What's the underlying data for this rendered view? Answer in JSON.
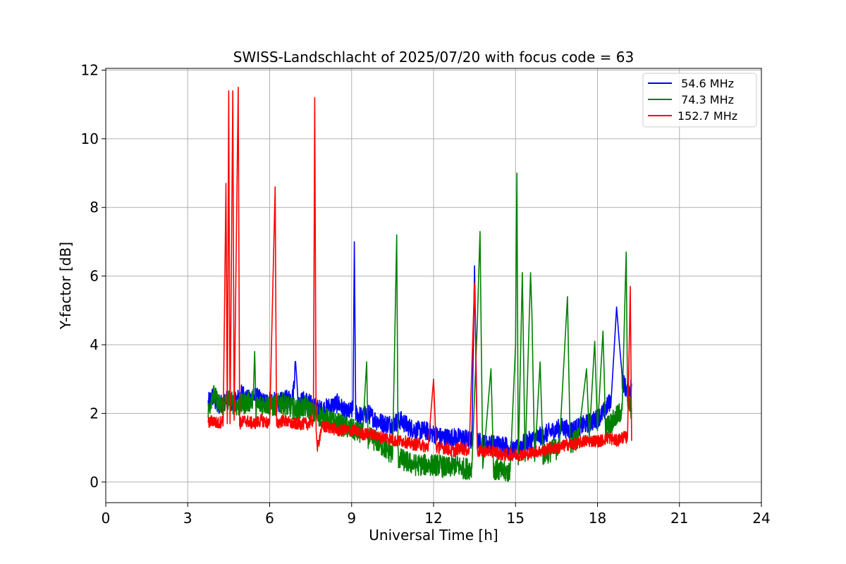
{
  "chart_data": {
    "type": "line",
    "title": "SWISS-Landschlacht of 2025/07/20 with focus code = 63",
    "xlabel": "Universal Time [h]",
    "ylabel": "Y-factor [dB]",
    "xlim": [
      0,
      24
    ],
    "ylim": [
      -0.6,
      12.05
    ],
    "xticks": [
      0,
      3,
      6,
      9,
      12,
      15,
      18,
      21,
      24
    ],
    "yticks": [
      0,
      2,
      4,
      6,
      8,
      10,
      12
    ],
    "grid": true,
    "legend_position": "top-right",
    "series": [
      {
        "name": " 54.6 MHz",
        "color": "#0000ff",
        "points": [
          [
            3.75,
            2.3
          ],
          [
            3.9,
            2.5
          ],
          [
            4.1,
            2.2
          ],
          [
            4.4,
            2.4
          ],
          [
            4.7,
            2.3
          ],
          [
            5.0,
            2.6
          ],
          [
            5.2,
            2.4
          ],
          [
            5.5,
            2.5
          ],
          [
            5.8,
            2.3
          ],
          [
            6.0,
            2.4
          ],
          [
            6.3,
            2.3
          ],
          [
            6.6,
            2.4
          ],
          [
            6.85,
            2.5
          ],
          [
            6.95,
            3.5
          ],
          [
            7.05,
            2.3
          ],
          [
            7.3,
            2.4
          ],
          [
            7.6,
            2.2
          ],
          [
            7.9,
            2.1
          ],
          [
            8.2,
            2.2
          ],
          [
            8.5,
            2.3
          ],
          [
            8.8,
            2.0
          ],
          [
            9.05,
            2.1
          ],
          [
            9.1,
            7.0
          ],
          [
            9.15,
            2.0
          ],
          [
            9.4,
            1.9
          ],
          [
            9.6,
            2.0
          ],
          [
            9.9,
            1.8
          ],
          [
            10.2,
            1.7
          ],
          [
            10.5,
            1.7
          ],
          [
            10.8,
            1.8
          ],
          [
            11.1,
            1.6
          ],
          [
            11.4,
            1.5
          ],
          [
            11.7,
            1.5
          ],
          [
            12.0,
            1.4
          ],
          [
            12.3,
            1.3
          ],
          [
            12.6,
            1.3
          ],
          [
            13.0,
            1.3
          ],
          [
            13.4,
            1.2
          ],
          [
            13.5,
            6.3
          ],
          [
            13.6,
            1.2
          ],
          [
            13.9,
            1.1
          ],
          [
            14.2,
            1.1
          ],
          [
            14.5,
            1.1
          ],
          [
            14.8,
            1.0
          ],
          [
            15.0,
            0.9
          ],
          [
            15.2,
            1.1
          ],
          [
            15.5,
            1.2
          ],
          [
            15.8,
            1.3
          ],
          [
            16.1,
            1.4
          ],
          [
            16.4,
            1.5
          ],
          [
            16.7,
            1.6
          ],
          [
            17.0,
            1.5
          ],
          [
            17.3,
            1.6
          ],
          [
            17.6,
            1.7
          ],
          [
            17.9,
            1.8
          ],
          [
            18.2,
            2.0
          ],
          [
            18.5,
            2.4
          ],
          [
            18.7,
            5.1
          ],
          [
            18.9,
            3.0
          ],
          [
            19.1,
            2.6
          ],
          [
            19.25,
            2.8
          ]
        ]
      },
      {
        "name": " 74.3 MHz",
        "color": "#008000",
        "points": [
          [
            3.75,
            2.0
          ],
          [
            3.9,
            2.6
          ],
          [
            4.2,
            2.2
          ],
          [
            4.5,
            2.4
          ],
          [
            4.8,
            2.2
          ],
          [
            5.1,
            2.3
          ],
          [
            5.4,
            2.4
          ],
          [
            5.45,
            3.8
          ],
          [
            5.5,
            2.2
          ],
          [
            5.8,
            2.3
          ],
          [
            6.1,
            2.2
          ],
          [
            6.4,
            2.3
          ],
          [
            6.7,
            2.2
          ],
          [
            7.0,
            2.1
          ],
          [
            7.3,
            2.2
          ],
          [
            7.6,
            2.0
          ],
          [
            7.9,
            1.9
          ],
          [
            8.2,
            1.8
          ],
          [
            8.5,
            1.7
          ],
          [
            8.8,
            1.6
          ],
          [
            9.1,
            1.5
          ],
          [
            9.4,
            1.4
          ],
          [
            9.55,
            3.5
          ],
          [
            9.6,
            1.3
          ],
          [
            9.9,
            1.2
          ],
          [
            10.2,
            1.0
          ],
          [
            10.5,
            0.8
          ],
          [
            10.65,
            7.2
          ],
          [
            10.7,
            0.7
          ],
          [
            11.0,
            0.6
          ],
          [
            11.3,
            0.5
          ],
          [
            11.6,
            0.5
          ],
          [
            11.9,
            0.5
          ],
          [
            12.2,
            0.5
          ],
          [
            12.5,
            0.4
          ],
          [
            12.8,
            0.5
          ],
          [
            13.1,
            0.4
          ],
          [
            13.4,
            0.4
          ],
          [
            13.6,
            4.6
          ],
          [
            13.7,
            7.3
          ],
          [
            13.8,
            0.4
          ],
          [
            14.1,
            3.3
          ],
          [
            14.2,
            0.4
          ],
          [
            14.5,
            0.3
          ],
          [
            14.8,
            0.3
          ],
          [
            15.0,
            4.0
          ],
          [
            15.05,
            9.0
          ],
          [
            15.1,
            0.5
          ],
          [
            15.25,
            6.1
          ],
          [
            15.35,
            0.6
          ],
          [
            15.55,
            6.1
          ],
          [
            15.6,
            4.9
          ],
          [
            15.7,
            0.6
          ],
          [
            15.9,
            3.5
          ],
          [
            16.0,
            0.8
          ],
          [
            16.3,
            0.9
          ],
          [
            16.6,
            1.0
          ],
          [
            16.9,
            5.4
          ],
          [
            17.0,
            1.1
          ],
          [
            17.3,
            1.3
          ],
          [
            17.6,
            3.3
          ],
          [
            17.7,
            1.3
          ],
          [
            17.9,
            4.1
          ],
          [
            18.0,
            1.5
          ],
          [
            18.2,
            4.4
          ],
          [
            18.3,
            1.6
          ],
          [
            18.6,
            1.8
          ],
          [
            18.9,
            2.1
          ],
          [
            19.05,
            6.7
          ],
          [
            19.1,
            2.4
          ],
          [
            19.25,
            2.1
          ]
        ]
      },
      {
        "name": "152.7 MHz",
        "color": "#ff0000",
        "points": [
          [
            3.75,
            1.7
          ],
          [
            3.9,
            1.8
          ],
          [
            4.1,
            1.7
          ],
          [
            4.3,
            1.8
          ],
          [
            4.4,
            8.7
          ],
          [
            4.45,
            1.7
          ],
          [
            4.5,
            11.4
          ],
          [
            4.55,
            1.7
          ],
          [
            4.65,
            11.4
          ],
          [
            4.7,
            1.8
          ],
          [
            4.85,
            11.5
          ],
          [
            4.9,
            1.7
          ],
          [
            5.1,
            1.8
          ],
          [
            5.4,
            1.7
          ],
          [
            5.7,
            1.8
          ],
          [
            6.0,
            1.7
          ],
          [
            6.2,
            8.6
          ],
          [
            6.25,
            1.7
          ],
          [
            6.5,
            1.8
          ],
          [
            6.8,
            1.7
          ],
          [
            7.1,
            1.7
          ],
          [
            7.4,
            1.7
          ],
          [
            7.6,
            1.8
          ],
          [
            7.65,
            11.2
          ],
          [
            7.7,
            1.5
          ],
          [
            7.75,
            1.0
          ],
          [
            7.9,
            1.6
          ],
          [
            8.2,
            1.6
          ],
          [
            8.5,
            1.5
          ],
          [
            8.8,
            1.5
          ],
          [
            9.1,
            1.5
          ],
          [
            9.4,
            1.4
          ],
          [
            9.7,
            1.4
          ],
          [
            10.0,
            1.3
          ],
          [
            10.3,
            1.3
          ],
          [
            10.6,
            1.2
          ],
          [
            10.9,
            1.2
          ],
          [
            11.2,
            1.1
          ],
          [
            11.5,
            1.1
          ],
          [
            11.8,
            1.0
          ],
          [
            12.0,
            3.0
          ],
          [
            12.1,
            1.0
          ],
          [
            12.4,
            1.0
          ],
          [
            12.7,
            0.9
          ],
          [
            13.0,
            1.0
          ],
          [
            13.3,
            0.9
          ],
          [
            13.5,
            5.8
          ],
          [
            13.6,
            0.9
          ],
          [
            13.9,
            0.9
          ],
          [
            14.2,
            0.9
          ],
          [
            14.5,
            0.8
          ],
          [
            14.8,
            0.8
          ],
          [
            15.1,
            0.8
          ],
          [
            15.4,
            0.8
          ],
          [
            15.7,
            0.9
          ],
          [
            16.0,
            0.9
          ],
          [
            16.3,
            1.0
          ],
          [
            16.6,
            1.0
          ],
          [
            16.9,
            1.1
          ],
          [
            17.2,
            1.1
          ],
          [
            17.5,
            1.2
          ],
          [
            17.8,
            1.2
          ],
          [
            18.1,
            1.2
          ],
          [
            18.4,
            1.3
          ],
          [
            18.7,
            1.2
          ],
          [
            18.9,
            1.3
          ],
          [
            19.1,
            1.3
          ],
          [
            19.2,
            5.7
          ],
          [
            19.25,
            1.2
          ]
        ]
      }
    ]
  }
}
